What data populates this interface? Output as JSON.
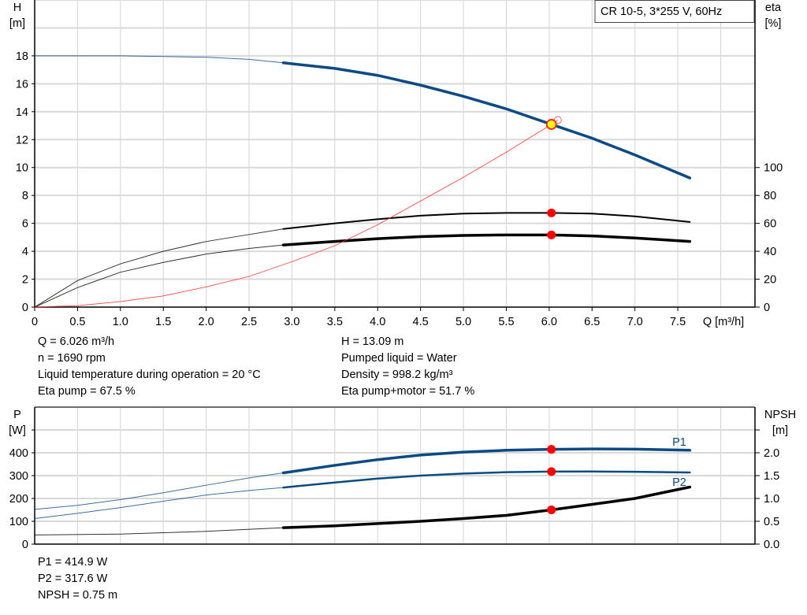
{
  "chart_data": [
    {
      "type": "line",
      "title": "CR 10-5, 3*255 V, 60Hz",
      "xlabel": "Q [m³/h]",
      "ylabel_left": [
        "H",
        "[m]"
      ],
      "ylabel_right": [
        "eta",
        "[%]"
      ],
      "xlim": [
        0,
        8.4
      ],
      "ylim_left": [
        0,
        22
      ],
      "ylim_right": [
        0,
        220
      ],
      "x_ticks": [
        "0",
        "0.5",
        "1.0",
        "1.5",
        "2.0",
        "2.5",
        "3.0",
        "3.5",
        "4.0",
        "4.5",
        "5.0",
        "5.5",
        "6.0",
        "6.5",
        "7.0",
        "7.5"
      ],
      "y_ticks_left": [
        "0",
        "2",
        "4",
        "6",
        "8",
        "10",
        "12",
        "14",
        "16",
        "18"
      ],
      "y_ticks_right": [
        "0",
        "20",
        "40",
        "60",
        "80",
        "100"
      ],
      "grid": true,
      "series": [
        {
          "axis": "left",
          "color": "#0b4a85",
          "x": [
            0,
            0.5,
            1.0,
            1.5,
            2.0,
            2.5,
            2.9,
            3.5,
            4.0,
            4.5,
            5.0,
            5.5,
            6.026,
            6.5,
            7.0,
            7.64
          ],
          "y": [
            18.0,
            18.0,
            18.0,
            17.95,
            17.9,
            17.75,
            17.5,
            17.1,
            16.6,
            15.9,
            15.1,
            14.2,
            13.09,
            12.1,
            10.9,
            9.25
          ]
        },
        {
          "axis": "right",
          "color": "#000000",
          "x": [
            0,
            0.5,
            1.0,
            1.5,
            2.0,
            2.5,
            2.9,
            3.5,
            4.0,
            4.5,
            5.0,
            5.5,
            6.026,
            6.5,
            7.0,
            7.64
          ],
          "y": [
            0,
            19,
            31,
            40,
            47,
            52,
            56,
            60,
            63,
            65.5,
            67,
            67.5,
            67.5,
            67,
            65,
            61
          ]
        },
        {
          "axis": "right",
          "color": "#000000",
          "x": [
            0,
            0.5,
            1.0,
            1.5,
            2.0,
            2.5,
            2.9,
            3.5,
            4.0,
            4.5,
            5.0,
            5.5,
            6.026,
            6.5,
            7.0,
            7.64
          ],
          "y": [
            0,
            14,
            25,
            32,
            38,
            42,
            44.5,
            47,
            49,
            50.5,
            51.3,
            51.7,
            51.7,
            51,
            49.5,
            47
          ]
        },
        {
          "axis": "left",
          "color": "#ff3030",
          "x": [
            0,
            0.5,
            1.0,
            1.5,
            2.0,
            2.5,
            3.0,
            3.5,
            4.0,
            4.5,
            5.0,
            5.5,
            6.026,
            6.1
          ],
          "y": [
            0,
            0.1,
            0.4,
            0.8,
            1.45,
            2.2,
            3.25,
            4.4,
            5.9,
            7.6,
            9.3,
            11.1,
            13.09,
            13.4
          ]
        }
      ],
      "duty_point": {
        "x": 6.026,
        "H": 13.09,
        "eta_pump": 67.5,
        "eta_total": 51.7
      }
    },
    {
      "type": "line",
      "xlim": [
        0,
        8.4
      ],
      "ylabel_left": [
        "P",
        "[W]"
      ],
      "ylabel_right": [
        "NPSH",
        "[m]"
      ],
      "ylim_left": [
        0,
        600
      ],
      "ylim_right": [
        0,
        3.0
      ],
      "y_ticks_left": [
        "0",
        "100",
        "200",
        "300",
        "400"
      ],
      "y_ticks_right": [
        "0.0",
        "0.5",
        "1.0",
        "1.5",
        "2.0"
      ],
      "grid": true,
      "series": [
        {
          "name": "P1",
          "axis": "left",
          "color": "#0b4a85",
          "x": [
            0,
            0.5,
            1.0,
            1.5,
            2.0,
            2.5,
            2.9,
            3.5,
            4.0,
            4.5,
            5.0,
            5.5,
            6.026,
            6.5,
            7.0,
            7.64
          ],
          "y": [
            152,
            170,
            195,
            225,
            258,
            290,
            312,
            345,
            370,
            390,
            403,
            411,
            414.9,
            417,
            416,
            411
          ]
        },
        {
          "name": "P2",
          "axis": "left",
          "color": "#0b4a85",
          "x": [
            0,
            0.5,
            1.0,
            1.5,
            2.0,
            2.5,
            2.9,
            3.5,
            4.0,
            4.5,
            5.0,
            5.5,
            6.026,
            6.5,
            7.0,
            7.64
          ],
          "y": [
            112,
            135,
            160,
            188,
            215,
            235,
            248,
            270,
            287,
            300,
            309,
            315,
            317.6,
            318,
            317,
            314
          ]
        },
        {
          "axis": "right",
          "color": "#000000",
          "x": [
            0,
            1.0,
            2.0,
            2.9,
            3.5,
            4.0,
            4.5,
            5.0,
            5.5,
            6.026,
            6.5,
            7.0,
            7.64
          ],
          "y": [
            0.2,
            0.22,
            0.28,
            0.36,
            0.4,
            0.45,
            0.5,
            0.56,
            0.63,
            0.75,
            0.87,
            1.0,
            1.25
          ]
        }
      ],
      "duty_point": {
        "x": 6.026,
        "P1": 414.9,
        "P2": 317.6,
        "NPSH": 0.75
      }
    }
  ],
  "info_top_left": [
    "Q = 6.026 m³/h",
    "n = 1690 rpm",
    "Liquid temperature during operation = 20 °C",
    "Eta pump = 67.5 %"
  ],
  "info_top_right": [
    "H = 13.09 m",
    "Pumped liquid = Water",
    "Density = 998.2 kg/m³",
    "Eta pump+motor = 51.7 %"
  ],
  "info_bottom": [
    "P1 = 414.9 W",
    "P2 = 317.6 W",
    "NPSH = 0.75 m"
  ]
}
